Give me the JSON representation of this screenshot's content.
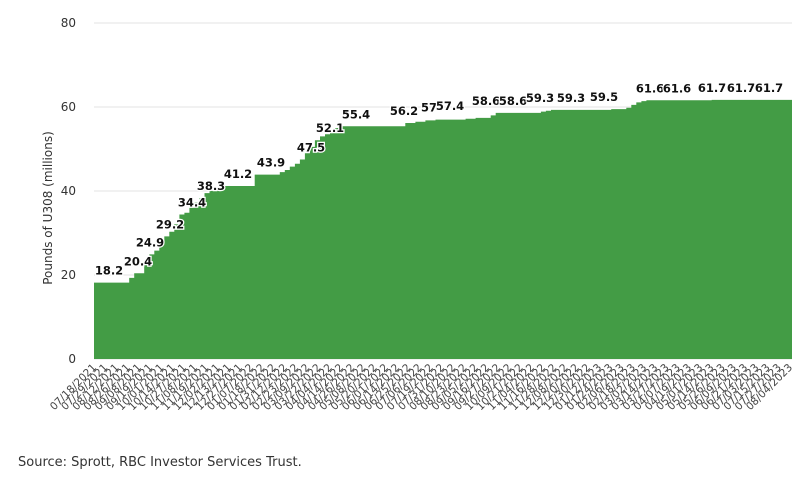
{
  "colors": {
    "area": "#439c45",
    "grid": "#e3e3e3",
    "text": "#333333"
  },
  "source": "Source: Sprott, RBC Investor Services Trust.",
  "chart_data": {
    "type": "area",
    "title": "",
    "xlabel": "",
    "ylabel": "Pounds of U308 (millions)",
    "ylim": [
      0,
      80
    ],
    "yticks": [
      0,
      20,
      40,
      60,
      80
    ],
    "grid": true,
    "xtick_labels": [
      "07/18/2021",
      "07/29/2021",
      "08/12/2021",
      "08/26/2021",
      "09/08/2021",
      "09/19/2021",
      "10/01/2021",
      "10/14/2021",
      "10/27/2021",
      "11/08/2021",
      "11/19/2021",
      "12/02/2021",
      "12/13/2021",
      "12/27/2021",
      "01/07/2022",
      "01/18/2022",
      "01/31/2022",
      "02/12/2022",
      "02/23/2022",
      "03/09/2022",
      "03/22/2022",
      "04/04/2022",
      "04/14/2022",
      "04/26/2022",
      "05/08/2022",
      "05/20/2022",
      "06/01/2022",
      "06/14/2022",
      "06/25/2022",
      "07/06/2022",
      "07/19/2022",
      "07/31/2022",
      "08/10/2022",
      "08/23/2022",
      "09/05/2022",
      "09/16/2022",
      "09/27/2022",
      "10/09/2022",
      "10/21/2022",
      "11/04/2022",
      "11/16/2022",
      "11/28/2022",
      "12/08/2022",
      "12/20/2022",
      "12/30/2022",
      "01/12/2023",
      "01/24/2023",
      "02/06/2023",
      "02/18/2023",
      "03/02/2023",
      "03/14/2023",
      "03/27/2023",
      "04/07/2023",
      "04/19/2023",
      "05/01/2023",
      "05/14/2023",
      "05/26/2023",
      "06/09/2023",
      "06/21/2023",
      "07/03/2023",
      "07/15/2023",
      "07/27/2023",
      "08/04/2023"
    ],
    "values": [
      18.2,
      18.2,
      18.2,
      18.2,
      18.2,
      18.2,
      18.2,
      19.3,
      20.4,
      20.4,
      22.5,
      24.9,
      25.8,
      27.5,
      29.2,
      30.3,
      32.1,
      34.4,
      34.8,
      36.0,
      37.2,
      38.3,
      39.5,
      40.0,
      40.3,
      40.8,
      41.2,
      41.2,
      41.2,
      41.2,
      41.2,
      41.2,
      43.9,
      43.9,
      43.9,
      43.9,
      43.9,
      44.5,
      45.0,
      45.8,
      46.5,
      47.5,
      49.0,
      50.5,
      52.1,
      53.0,
      53.5,
      54.2,
      55.0,
      55.4,
      55.4,
      55.4,
      55.4,
      55.4,
      55.4,
      55.4,
      55.4,
      55.4,
      55.4,
      55.4,
      55.4,
      55.4,
      56.2,
      56.2,
      56.5,
      56.5,
      56.8,
      56.8,
      57.0,
      57.0,
      57.0,
      57.0,
      57.0,
      57.0,
      57.2,
      57.2,
      57.4,
      57.4,
      57.4,
      58.0,
      58.6,
      58.6,
      58.6,
      58.6,
      58.6,
      58.6,
      58.6,
      58.6,
      58.6,
      58.9,
      59.1,
      59.3,
      59.3,
      59.3,
      59.3,
      59.3,
      59.3,
      59.3,
      59.3,
      59.3,
      59.3,
      59.3,
      59.3,
      59.5,
      59.5,
      59.5,
      59.8,
      60.5,
      61.1,
      61.4,
      61.6,
      61.6,
      61.6,
      61.6,
      61.6,
      61.6,
      61.6,
      61.6,
      61.6,
      61.6,
      61.6,
      61.6,
      61.6,
      61.7,
      61.7,
      61.7,
      61.7,
      61.7,
      61.7,
      61.7,
      61.7,
      61.7,
      61.7,
      61.7,
      61.7,
      61.7,
      61.7,
      61.7,
      61.7
    ],
    "data_labels": [
      {
        "text": "18.2",
        "value": 18.2
      },
      {
        "text": "20.4",
        "value": 20.4
      },
      {
        "text": "24.9",
        "value": 24.9
      },
      {
        "text": "29.2",
        "value": 29.2
      },
      {
        "text": "34.4",
        "value": 34.4
      },
      {
        "text": "38.3",
        "value": 38.3
      },
      {
        "text": "41.2",
        "value": 41.2
      },
      {
        "text": "43.9",
        "value": 43.9
      },
      {
        "text": "47.5",
        "value": 47.5
      },
      {
        "text": "52.1",
        "value": 52.1
      },
      {
        "text": "55.4",
        "value": 55.4
      },
      {
        "text": "56.2",
        "value": 56.2
      },
      {
        "text": "57",
        "value": 57.0
      },
      {
        "text": "57.4",
        "value": 57.4
      },
      {
        "text": "58.6",
        "value": 58.6
      },
      {
        "text": "58.6",
        "value": 58.6
      },
      {
        "text": "59.3",
        "value": 59.3
      },
      {
        "text": "59.3",
        "value": 59.3
      },
      {
        "text": "59.5",
        "value": 59.5
      },
      {
        "text": "61.6",
        "value": 61.6
      },
      {
        "text": "61.6",
        "value": 61.6
      },
      {
        "text": "61.7",
        "value": 61.7
      },
      {
        "text": "61.7",
        "value": 61.7
      },
      {
        "text": "61.7",
        "value": 61.7
      }
    ]
  }
}
